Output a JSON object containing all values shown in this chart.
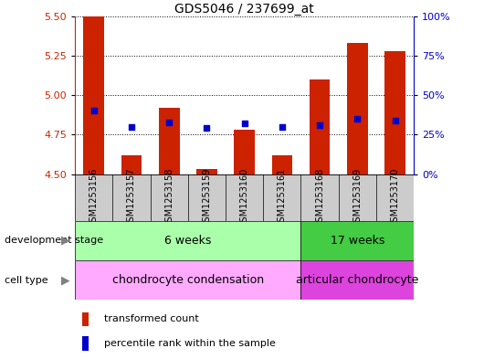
{
  "title": "GDS5046 / 237699_at",
  "samples": [
    "GSM1253156",
    "GSM1253157",
    "GSM1253158",
    "GSM1253159",
    "GSM1253160",
    "GSM1253161",
    "GSM1253168",
    "GSM1253169",
    "GSM1253170"
  ],
  "bar_values": [
    5.5,
    4.62,
    4.92,
    4.53,
    4.78,
    4.62,
    5.1,
    5.33,
    5.28
  ],
  "bar_bottom": 4.5,
  "blue_dot_values": [
    4.9,
    4.8,
    4.83,
    4.79,
    4.82,
    4.8,
    4.81,
    4.85,
    4.84
  ],
  "ylim_left": [
    4.5,
    5.5
  ],
  "ylim_right": [
    0,
    100
  ],
  "yticks_left": [
    4.5,
    4.75,
    5.0,
    5.25,
    5.5
  ],
  "yticks_right": [
    0,
    25,
    50,
    75,
    100
  ],
  "bar_color": "#cc2200",
  "dot_color": "#0000cc",
  "bar_width": 0.55,
  "grid_color": "black",
  "development_stage_label": "development stage",
  "cell_type_label": "cell type",
  "group1_label": "6 weeks",
  "group2_label": "17 weeks",
  "celltype1_label": "chondrocyte condensation",
  "celltype2_label": "articular chondrocyte",
  "group1_count": 6,
  "group2_count": 3,
  "legend_bar_label": "transformed count",
  "legend_dot_label": "percentile rank within the sample",
  "bg_color": "#ffffff",
  "plot_area_bg": "#ffffff",
  "tick_area_bg": "#cccccc",
  "dev_stage_bg1": "#aaffaa",
  "dev_stage_bg2": "#44cc44",
  "cell_type_bg1": "#ffaaff",
  "cell_type_bg2": "#dd44dd",
  "right_axis_color": "#0000cc",
  "left_axis_color": "#cc2200",
  "title_fontsize": 10,
  "tick_fontsize": 8,
  "label_fontsize": 8,
  "sample_fontsize": 7
}
